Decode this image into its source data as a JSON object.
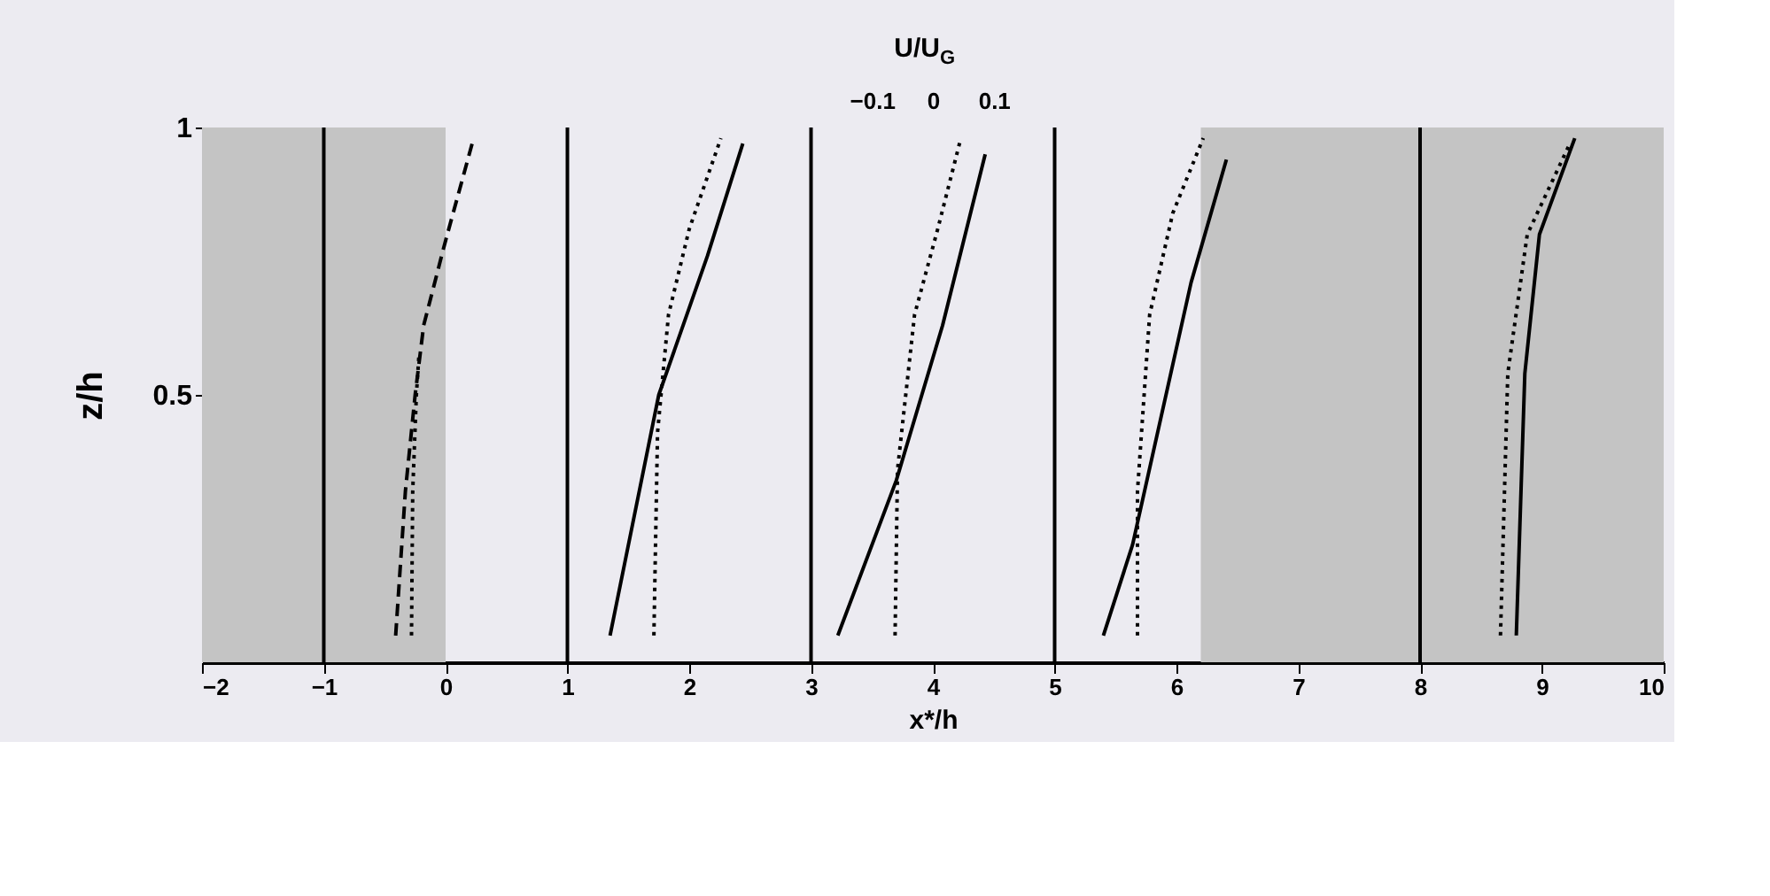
{
  "chart_data": {
    "type": "line",
    "xlabel": "x*/h",
    "ylabel": "z/h",
    "x2label": "U/U$_{G}$",
    "xlim": [
      -2,
      10
    ],
    "ylim": [
      0,
      1
    ],
    "xticks": [
      -2,
      -1,
      0,
      1,
      2,
      3,
      4,
      5,
      6,
      7,
      8,
      9,
      10
    ],
    "yticks": [
      0.5,
      1
    ],
    "x2lim": [
      -1.2,
      1.2
    ],
    "x2ticks": [
      -0.1,
      0,
      0.1
    ],
    "grid": false,
    "bands": [
      {
        "axis": "x",
        "from": -2,
        "to": 0,
        "color": "#c4c4c4"
      },
      {
        "axis": "x",
        "from": 6.2,
        "to": 10,
        "color": "#c4c4c4"
      }
    ],
    "series": [
      {
        "color": "#000000",
        "line_style": "dashed",
        "x": [
          -0.41,
          -0.33,
          -0.25,
          -0.18,
          -0.01,
          0.23
        ],
        "values": [
          0.05,
          0.32,
          0.5,
          0.63,
          0.78,
          0.98
        ]
      },
      {
        "color": "#000000",
        "line_style": "dotted",
        "x": [
          -0.28,
          -0.27,
          -0.24,
          -0.22
        ],
        "values": [
          0.05,
          0.32,
          0.5,
          0.57
        ]
      },
      {
        "color": "#000000",
        "line_style": "solid",
        "x": [
          1.35,
          1.75,
          2.15,
          2.44
        ],
        "values": [
          0.05,
          0.5,
          0.76,
          0.97
        ]
      },
      {
        "color": "#000000",
        "line_style": "dotted",
        "x": [
          1.71,
          1.74,
          1.83,
          2.0,
          2.26
        ],
        "values": [
          0.05,
          0.43,
          0.65,
          0.81,
          0.98
        ]
      },
      {
        "color": "#000000",
        "line_style": "solid",
        "x": [
          3.22,
          3.7,
          4.08,
          4.43
        ],
        "values": [
          0.05,
          0.34,
          0.63,
          0.95
        ]
      },
      {
        "color": "#000000",
        "line_style": "dotted",
        "x": [
          3.69,
          3.71,
          3.85,
          4.04,
          4.23
        ],
        "values": [
          0.05,
          0.36,
          0.65,
          0.81,
          0.98
        ]
      },
      {
        "color": "#000000",
        "line_style": "solid",
        "x": [
          5.4,
          5.64,
          6.12,
          6.41
        ],
        "values": [
          0.05,
          0.22,
          0.71,
          0.94
        ]
      },
      {
        "color": "#000000",
        "line_style": "dotted",
        "x": [
          5.68,
          5.68,
          5.78,
          5.97,
          6.22
        ],
        "values": [
          0.05,
          0.32,
          0.65,
          0.84,
          0.98
        ]
      },
      {
        "color": "#000000",
        "line_style": "solid",
        "x": [
          8.79,
          8.86,
          8.98,
          9.27
        ],
        "values": [
          0.05,
          0.54,
          0.8,
          0.98
        ]
      },
      {
        "color": "#000000",
        "line_style": "dotted",
        "x": [
          8.66,
          8.72,
          8.88,
          9.23
        ],
        "values": [
          0.05,
          0.54,
          0.8,
          0.97
        ]
      }
    ],
    "ref_lines": [
      {
        "axis": "x",
        "value": -1,
        "color": "#000000"
      },
      {
        "axis": "x",
        "value": 1,
        "color": "#000000"
      },
      {
        "axis": "x",
        "value": 3,
        "color": "#000000"
      },
      {
        "axis": "x",
        "value": 5,
        "color": "#000000"
      },
      {
        "axis": "x",
        "value": 8,
        "color": "#000000"
      }
    ]
  }
}
